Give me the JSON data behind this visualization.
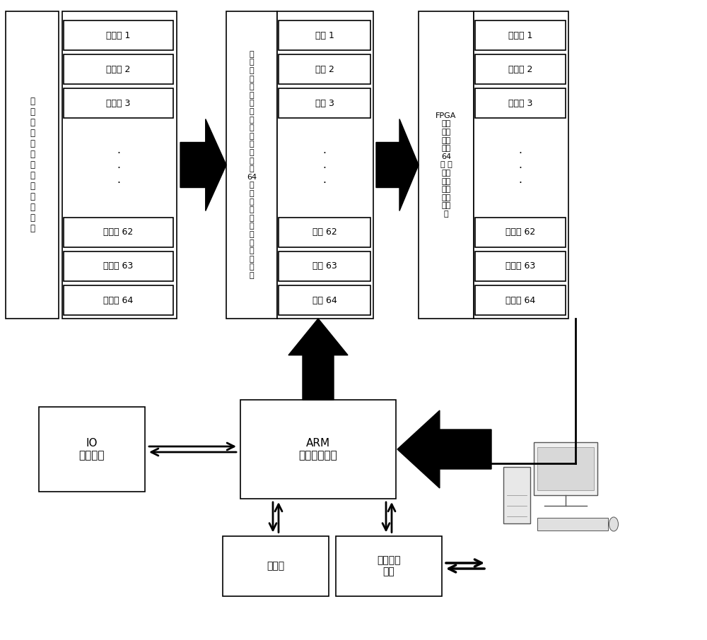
{
  "bg_color": "#ffffff",
  "box_color": "#ffffff",
  "box_edge": "#000000",
  "text_color": "#000000",
  "figsize": [
    10.0,
    9.06
  ],
  "dpi": 100,
  "detector_labels": [
    "探测器 1",
    "探测器 2",
    "探测器 3",
    "探测器 62",
    "探测器 63",
    "探测器 64"
  ],
  "channel_labels": [
    "通道 1",
    "通道 2",
    "通道 3",
    "通道 62",
    "通道 63",
    "通道 64"
  ],
  "counter_labels": [
    "计数器 1",
    "计数器 2",
    "计数器 3",
    "计数器 62",
    "计数器 63",
    "计数器 64"
  ],
  "left_big_label": "核\n电\n子\n学\n探\n测\n器\n信\n号\n输\n入\n接\n口",
  "mid1_big_label": "前\n端\n信\n号\n处\n理\n模\n块\n（\n集\n成\n电\n路\n实\n现\n64\n通\n道\n荷\n电\n采\n集\n上\n下\n阈\n甄\n别\n）",
  "mid2_big_label": "FPGA\n计数\n采集\n模块\n实现\n64\n个 通\n道同\n步高\n度精\n度定\n时采\n集",
  "arm_label": "ARM\n核心控制模块",
  "io_label": "IO\n通信模块",
  "storage_label": "存储器",
  "network_label": "网络通信\n模块"
}
